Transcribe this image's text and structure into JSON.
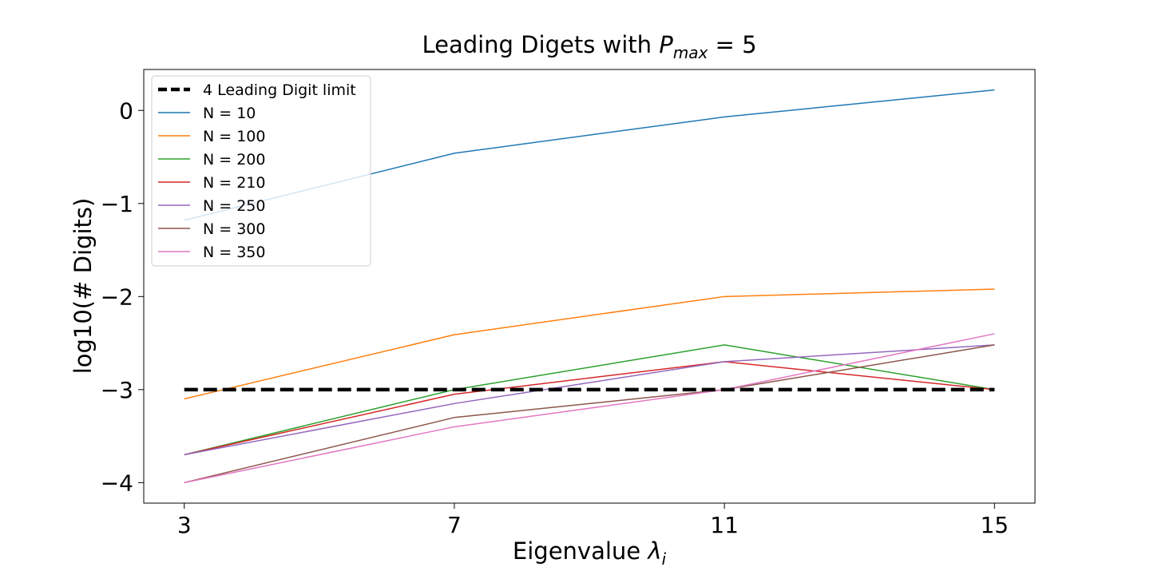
{
  "chart_data": {
    "type": "line",
    "title": {
      "prefix": "Leading Digets with ",
      "symbol": "P",
      "subscript": "max",
      "suffix": " = 5"
    },
    "xlabel": {
      "prefix": "Eigenvalue ",
      "symbol": "λ",
      "subscript": "i"
    },
    "ylabel": "log10(# Digits)",
    "x": [
      3,
      7,
      11,
      15
    ],
    "x_ticks": [
      "3",
      "7",
      "11",
      "15"
    ],
    "y_ticks": [
      "0",
      "−1",
      "−2",
      "−3",
      "−4"
    ],
    "y_tick_values": [
      0,
      -1,
      -2,
      -3,
      -4
    ],
    "xlim": [
      2.4,
      15.6
    ],
    "ylim": [
      -4.22,
      0.44
    ],
    "grid": false,
    "legend_position": "top-left",
    "reference_line": {
      "name": "4 Leading Digit limit",
      "y": -3,
      "color": "#000000",
      "style": "dashed"
    },
    "series": [
      {
        "name": "N = 10",
        "color": "#1f77b4",
        "values": [
          -1.18,
          -0.46,
          -0.07,
          0.22
        ]
      },
      {
        "name": "N = 100",
        "color": "#ff7f0e",
        "values": [
          -3.1,
          -2.41,
          -2.0,
          -1.92
        ]
      },
      {
        "name": "N = 200",
        "color": "#2ca02c",
        "values": [
          -3.7,
          -3.0,
          -2.52,
          -3.0
        ]
      },
      {
        "name": "N = 210",
        "color": "#d62728",
        "values": [
          -3.7,
          -3.05,
          -2.7,
          -3.0
        ]
      },
      {
        "name": "N = 250",
        "color": "#9467bd",
        "values": [
          -3.7,
          -3.15,
          -2.7,
          -2.52
        ]
      },
      {
        "name": "N = 300",
        "color": "#8c564b",
        "values": [
          -4.0,
          -3.3,
          -3.0,
          -2.52
        ]
      },
      {
        "name": "N = 350",
        "color": "#e377c2",
        "values": [
          -4.0,
          -3.4,
          -3.0,
          -2.4
        ]
      }
    ]
  }
}
